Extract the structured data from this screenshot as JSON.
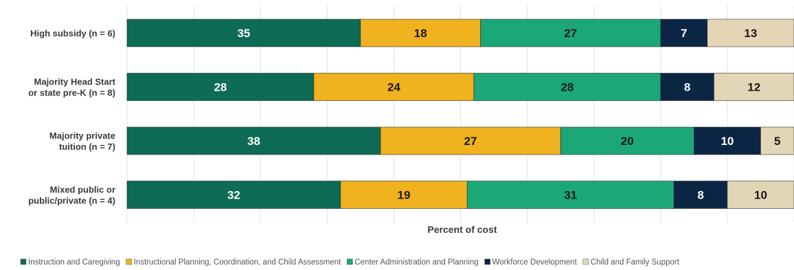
{
  "chart_data": {
    "type": "bar",
    "orientation": "horizontal",
    "stacked": true,
    "categories": [
      [
        "High subsidy (n = 6)"
      ],
      [
        "Majority Head Start",
        "or state pre-K (n = 8)"
      ],
      [
        "Majority private",
        "tuition (n = 7)"
      ],
      [
        "Mixed public or",
        "public/private (n = 4)"
      ]
    ],
    "series": [
      {
        "name": "Instruction and Caregiving",
        "color": "#0e6b55",
        "label_color": "#ffffff",
        "values": [
          35,
          28,
          38,
          32
        ]
      },
      {
        "name": "Instructional Planning, Coordination, and Child Assessment",
        "color": "#f0b21f",
        "label_color": "#1a1a1a",
        "values": [
          18,
          24,
          27,
          19
        ]
      },
      {
        "name": "Center Administration and Planning",
        "color": "#1ba777",
        "label_color": "#1a1a1a",
        "values": [
          27,
          28,
          20,
          31
        ]
      },
      {
        "name": "Workforce Development",
        "color": "#0b2545",
        "label_color": "#ffffff",
        "values": [
          7,
          8,
          10,
          8
        ]
      },
      {
        "name": "Child and Family Support",
        "color": "#e3d6b6",
        "label_color": "#1a1a1a",
        "values": [
          13,
          12,
          5,
          10
        ]
      }
    ],
    "xlabel": "Percent of cost",
    "xlim": [
      0,
      100
    ],
    "grid": true,
    "legend_position": "bottom"
  }
}
